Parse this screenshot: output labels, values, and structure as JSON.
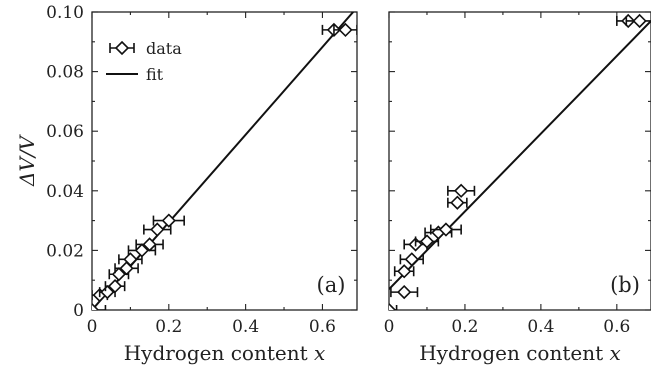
{
  "chart_data": [
    {
      "type": "scatter",
      "panel_label": "(a)",
      "xlabel": "Hydrogen content x",
      "ylabel": "ΔV/V",
      "xlim": [
        0,
        0.69
      ],
      "ylim": [
        0,
        0.1
      ],
      "x_ticks": [
        "0",
        "0.2",
        "0.4",
        "0.6"
      ],
      "y_ticks": [
        "0",
        "0.02",
        "0.04",
        "0.06",
        "0.08",
        "0.10"
      ],
      "legend": {
        "placement": "top-left",
        "entries": [
          "data",
          "fit"
        ]
      },
      "series": [
        {
          "name": "data",
          "points": [
            {
              "x": 0.0,
              "y": 0.0,
              "xerr": 0.035
            },
            {
              "x": 0.02,
              "y": 0.005,
              "xerr": 0.02
            },
            {
              "x": 0.04,
              "y": 0.006,
              "xerr": 0.02
            },
            {
              "x": 0.06,
              "y": 0.008,
              "xerr": 0.025
            },
            {
              "x": 0.07,
              "y": 0.012,
              "xerr": 0.025
            },
            {
              "x": 0.09,
              "y": 0.014,
              "xerr": 0.03
            },
            {
              "x": 0.1,
              "y": 0.017,
              "xerr": 0.03
            },
            {
              "x": 0.13,
              "y": 0.02,
              "xerr": 0.035
            },
            {
              "x": 0.15,
              "y": 0.022,
              "xerr": 0.035
            },
            {
              "x": 0.17,
              "y": 0.027,
              "xerr": 0.035
            },
            {
              "x": 0.2,
              "y": 0.03,
              "xerr": 0.04
            },
            {
              "x": 0.63,
              "y": 0.094,
              "xerr": 0.03
            },
            {
              "x": 0.66,
              "y": 0.094,
              "xerr": 0.03
            }
          ]
        },
        {
          "name": "fit",
          "line": [
            [
              0.0,
              0.0
            ],
            [
              0.68,
              0.1
            ]
          ]
        }
      ]
    },
    {
      "type": "scatter",
      "panel_label": "(b)",
      "xlabel": "Hydrogen content x",
      "ylabel": "",
      "xlim": [
        0,
        0.69
      ],
      "ylim": [
        0,
        0.1
      ],
      "x_ticks": [
        "0",
        "0.2",
        "0.4",
        "0.6"
      ],
      "y_ticks": [],
      "series": [
        {
          "name": "data",
          "points": [
            {
              "x": 0.0,
              "y": 0.0,
              "xerr": 0.02
            },
            {
              "x": 0.04,
              "y": 0.006,
              "xerr": 0.035
            },
            {
              "x": 0.04,
              "y": 0.013,
              "xerr": 0.025
            },
            {
              "x": 0.06,
              "y": 0.017,
              "xerr": 0.03
            },
            {
              "x": 0.07,
              "y": 0.022,
              "xerr": 0.03
            },
            {
              "x": 0.1,
              "y": 0.023,
              "xerr": 0.03
            },
            {
              "x": 0.13,
              "y": 0.026,
              "xerr": 0.035
            },
            {
              "x": 0.15,
              "y": 0.027,
              "xerr": 0.04
            },
            {
              "x": 0.18,
              "y": 0.036,
              "xerr": 0.025
            },
            {
              "x": 0.19,
              "y": 0.04,
              "xerr": 0.035
            },
            {
              "x": 0.63,
              "y": 0.097,
              "xerr": 0.03
            },
            {
              "x": 0.66,
              "y": 0.097,
              "xerr": 0.035
            }
          ]
        },
        {
          "name": "fit",
          "line": [
            [
              0.0,
              0.007
            ],
            [
              0.69,
              0.097
            ]
          ]
        }
      ]
    }
  ]
}
